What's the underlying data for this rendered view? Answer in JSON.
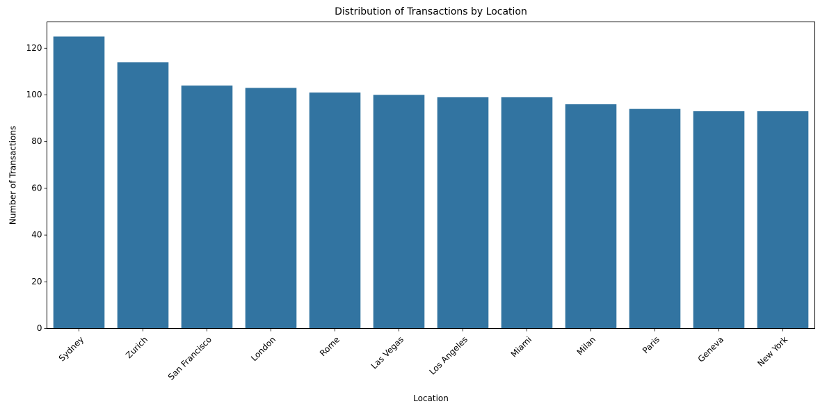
{
  "chart_data": {
    "type": "bar",
    "title": "Distribution of Transactions by Location",
    "xlabel": "Location",
    "ylabel": "Number of Transactions",
    "categories": [
      "Sydney",
      "Zurich",
      "San Francisco",
      "London",
      "Rome",
      "Las Vegas",
      "Los Angeles",
      "Miami",
      "Milan",
      "Paris",
      "Geneva",
      "New York"
    ],
    "values": [
      125,
      114,
      104,
      103,
      101,
      100,
      99,
      99,
      96,
      94,
      93,
      93
    ],
    "ylim": [
      0,
      131.25
    ],
    "yticks": [
      "0",
      "20",
      "40",
      "60",
      "80",
      "100",
      "120"
    ],
    "bar_color": "#3274a1",
    "grid": false,
    "legend": "none"
  }
}
